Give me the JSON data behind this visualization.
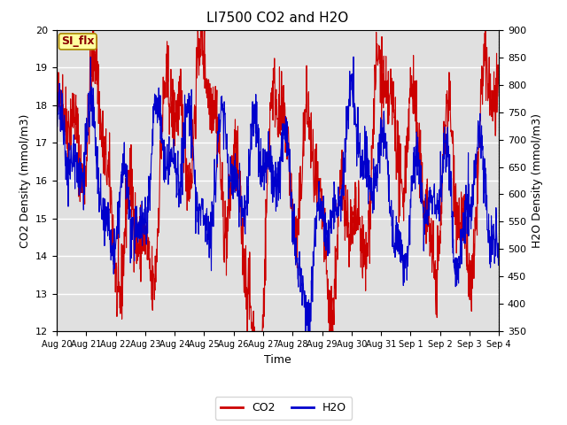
{
  "title": "LI7500 CO2 and H2O",
  "xlabel": "Time",
  "ylabel_left": "CO2 Density (mmol/m3)",
  "ylabel_right": "H2O Density (mmol/m3)",
  "annotation": "SI_flx",
  "co2_ylim": [
    12.0,
    20.0
  ],
  "h2o_ylim": [
    350,
    900
  ],
  "co2_yticks": [
    12.0,
    13.0,
    14.0,
    15.0,
    16.0,
    17.0,
    18.0,
    19.0,
    20.0
  ],
  "h2o_yticks": [
    350,
    400,
    450,
    500,
    550,
    600,
    650,
    700,
    750,
    800,
    850,
    900
  ],
  "co2_color": "#cc0000",
  "h2o_color": "#0000cc",
  "bg_color": "#e0e0e0",
  "xtick_labels": [
    "Aug 20",
    "Aug 21",
    "Aug 22",
    "Aug 23",
    "Aug 24",
    "Aug 25",
    "Aug 26",
    "Aug 27",
    "Aug 28",
    "Aug 29",
    "Aug 30",
    "Aug 31",
    "Sep 1",
    "Sep 2",
    "Sep 3",
    "Sep 4"
  ]
}
